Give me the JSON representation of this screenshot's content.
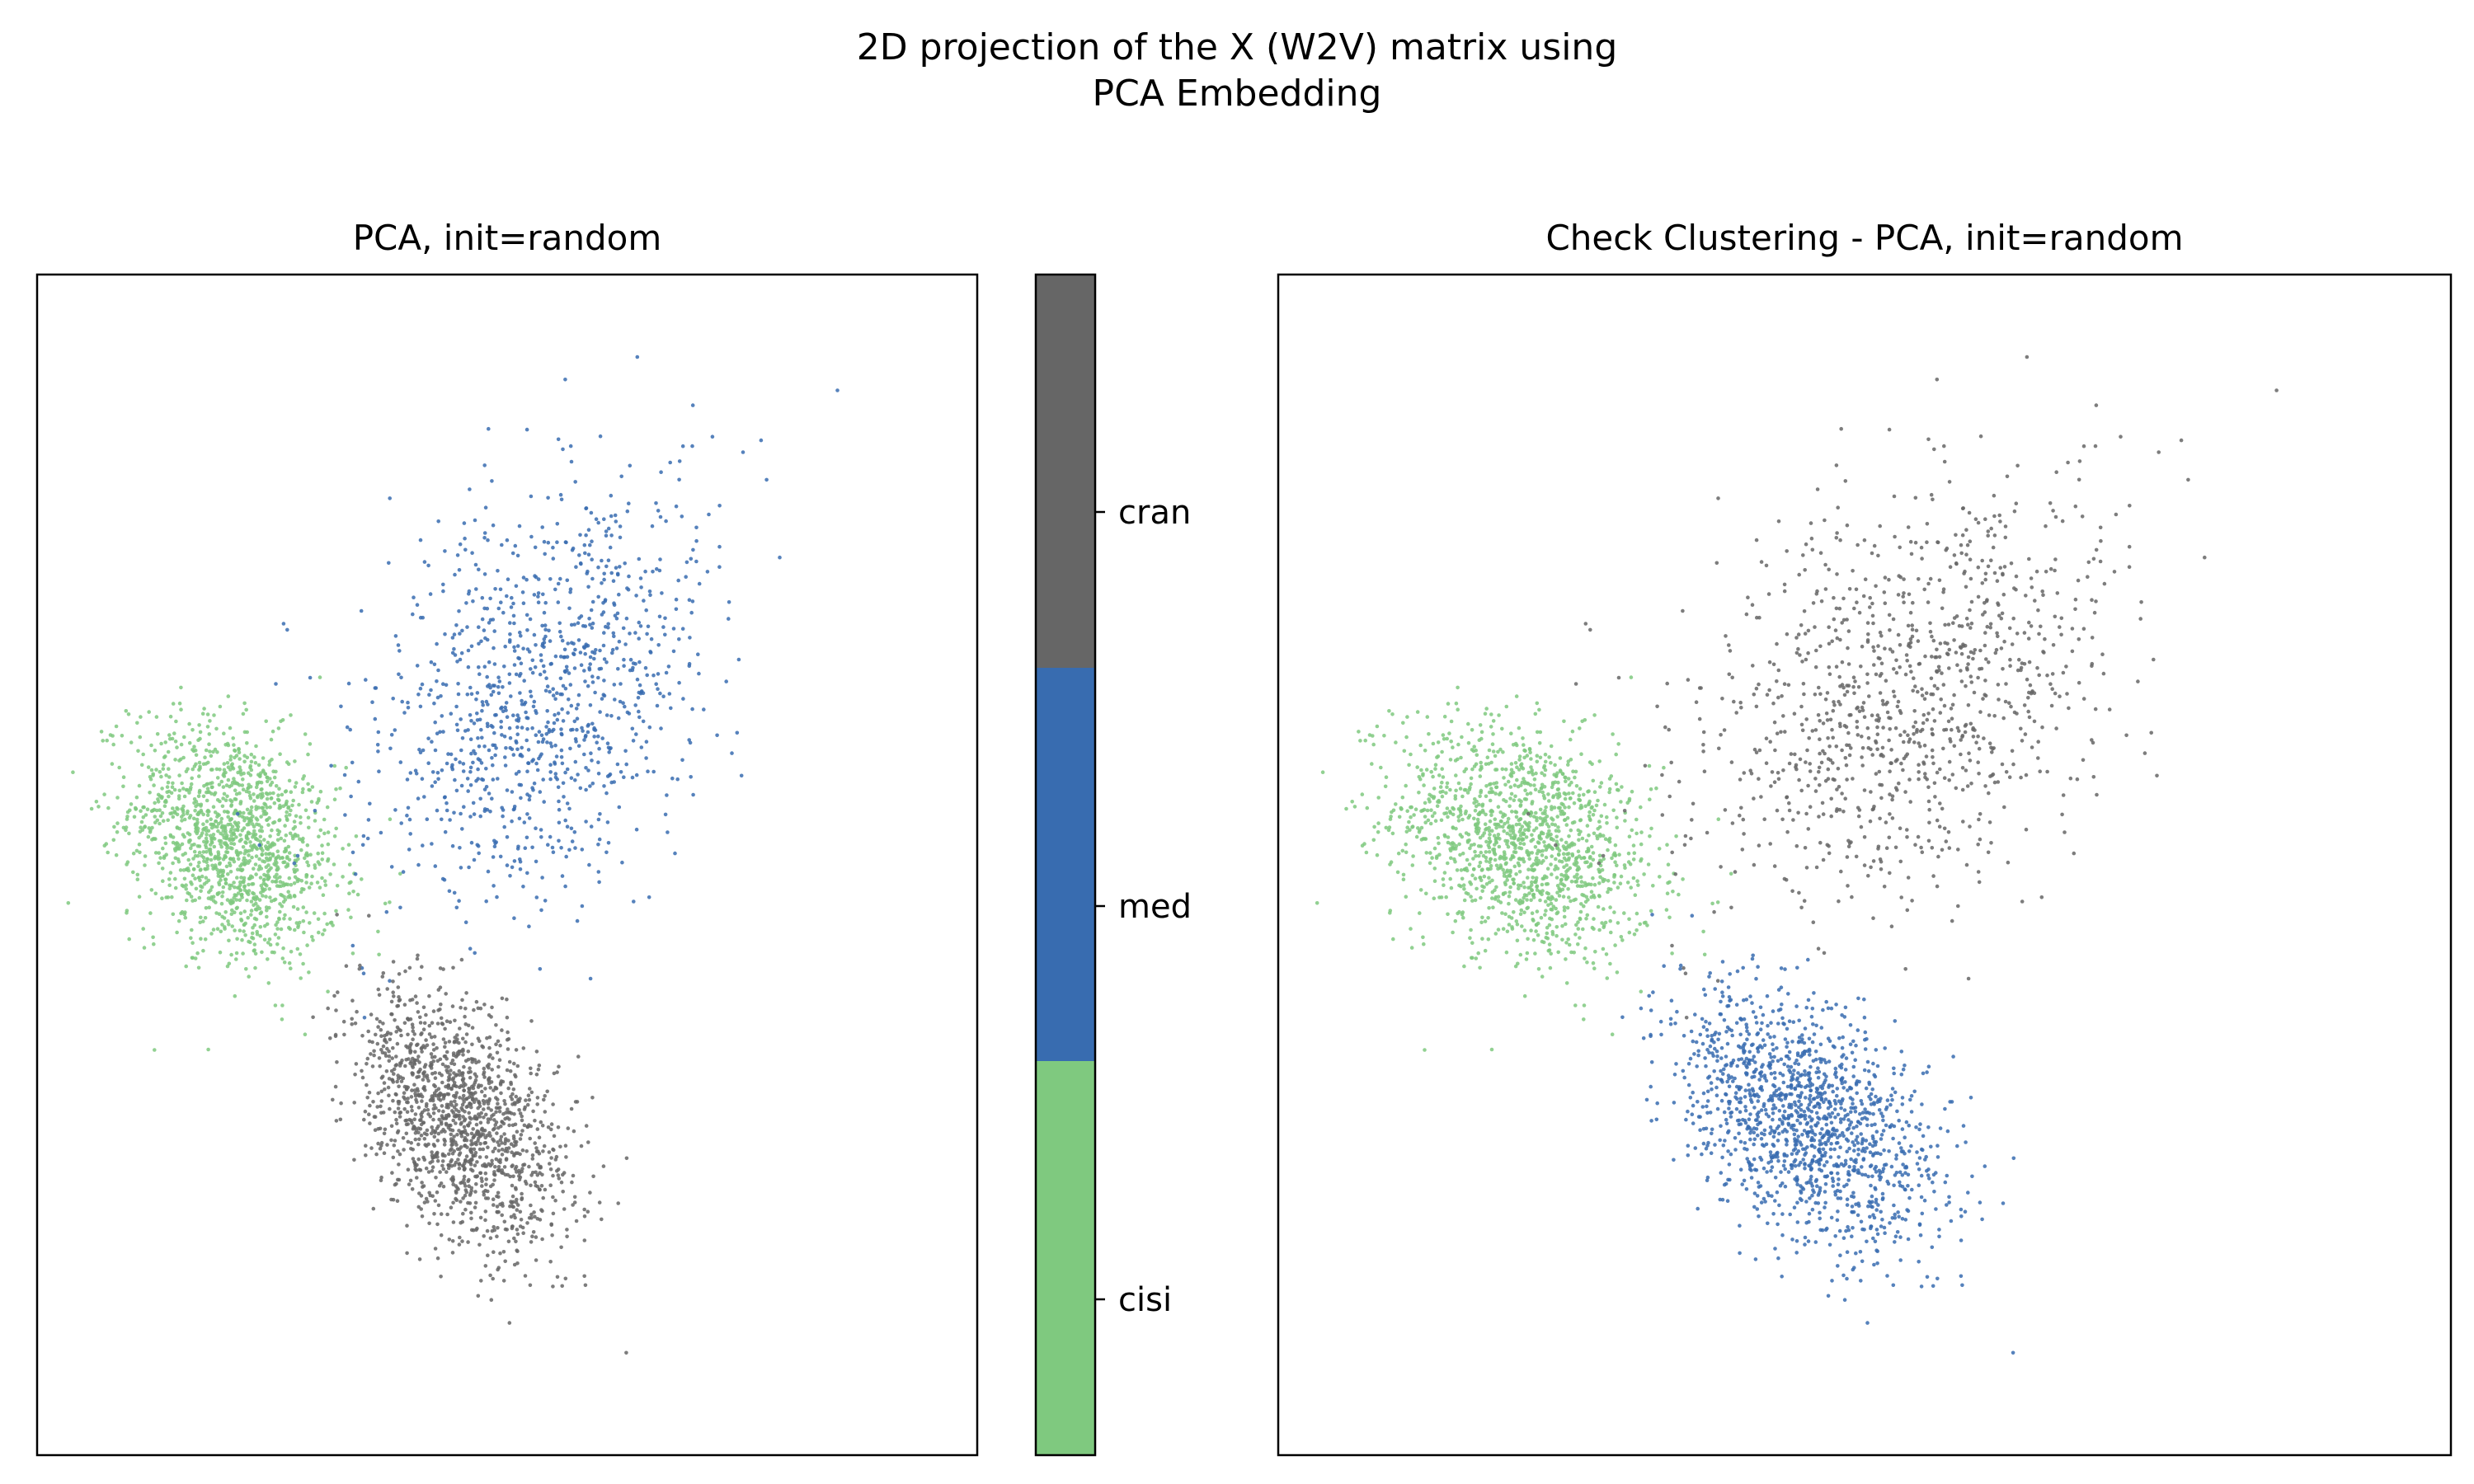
{
  "figure": {
    "title_line1": "2D projection of the X (W2V) matrix using",
    "title_line2": "PCA Embedding"
  },
  "colorbar": {
    "labels": [
      "cisi",
      "med",
      "cran"
    ],
    "colors": [
      "#7fc97f",
      "#386cb0",
      "#666666"
    ]
  },
  "chart_data": [
    {
      "type": "scatter",
      "title": "PCA, init=random",
      "xlabel": "",
      "ylabel": "",
      "xticks": "none",
      "yticks": "none",
      "xlim": [
        -1.0,
        1.0
      ],
      "ylim": [
        -1.0,
        1.0
      ],
      "grid": false,
      "color_by": "true label",
      "series": [
        {
          "name": "cisi",
          "color": "#7fc97f",
          "n_points": 1400,
          "center": [
            -0.58,
            0.04
          ],
          "spread": [
            0.11,
            0.1
          ],
          "corr": -0.3
        },
        {
          "name": "med",
          "color": "#386cb0",
          "n_points": 1050,
          "center": [
            0.08,
            0.3
          ],
          "spread": [
            0.18,
            0.18
          ],
          "corr": 0.35
        },
        {
          "name": "cran",
          "color": "#666666",
          "n_points": 1400,
          "center": [
            -0.1,
            -0.43
          ],
          "spread": [
            0.11,
            0.11
          ],
          "corr": -0.45
        }
      ]
    },
    {
      "type": "scatter",
      "title": "Check Clustering - PCA, init=random",
      "xlabel": "",
      "ylabel": "",
      "xticks": "none",
      "yticks": "none",
      "xlim": [
        -1.0,
        1.0
      ],
      "ylim": [
        -1.0,
        1.0
      ],
      "grid": false,
      "color_by": "cluster assignment",
      "series": [
        {
          "name": "cisi",
          "color": "#7fc97f",
          "n_points": 1400,
          "center": [
            -0.58,
            0.04
          ],
          "spread": [
            0.11,
            0.1
          ],
          "corr": -0.3
        },
        {
          "name": "med",
          "color": "#666666",
          "n_points": 1050,
          "center": [
            0.08,
            0.3
          ],
          "spread": [
            0.18,
            0.18
          ],
          "corr": 0.35
        },
        {
          "name": "cran",
          "color": "#386cb0",
          "n_points": 1400,
          "center": [
            -0.1,
            -0.43
          ],
          "spread": [
            0.11,
            0.11
          ],
          "corr": -0.45
        }
      ]
    }
  ]
}
